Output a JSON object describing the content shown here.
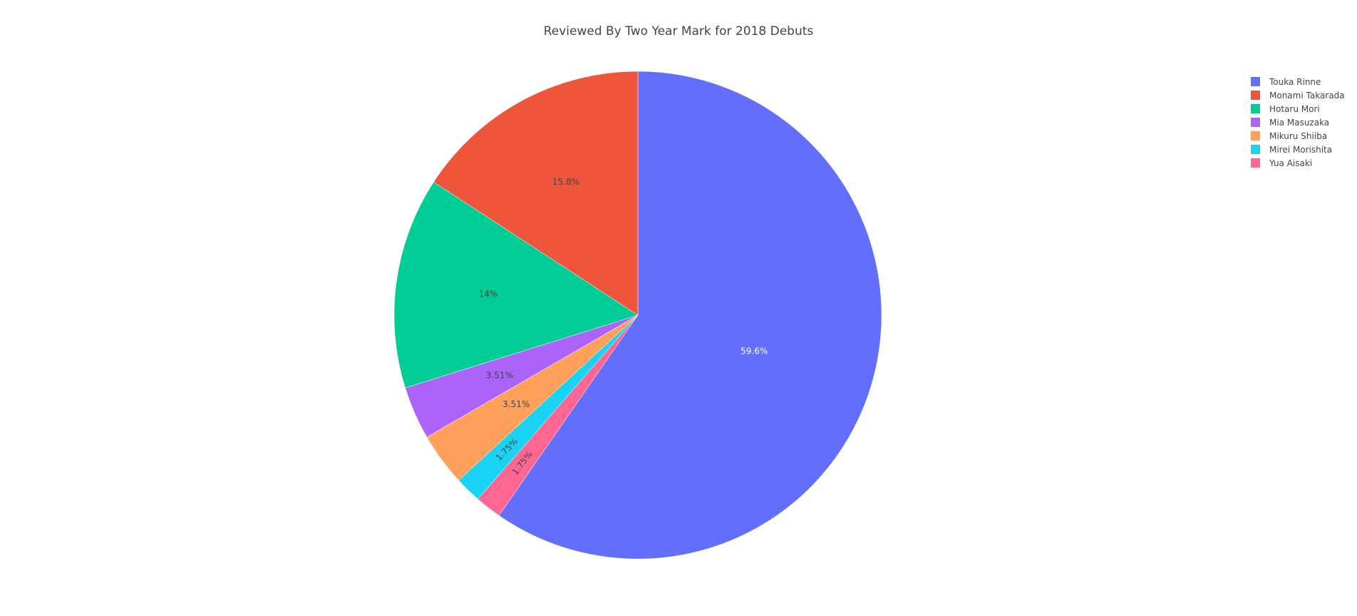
{
  "chart_data": {
    "type": "pie",
    "title": "Reviewed By Two Year Mark for 2018 Debuts",
    "slices": [
      {
        "label": "Touka Rinne",
        "percent": 59.6,
        "text": "59.6%",
        "color": "#636efa",
        "text_color": "#ffffff"
      },
      {
        "label": "Yua Aisaki",
        "percent": 1.75,
        "text": "1.75%",
        "color": "#ff6692",
        "text_color": "#444444"
      },
      {
        "label": "Mirei Morishita",
        "percent": 1.75,
        "text": "1.75%",
        "color": "#19d3f3",
        "text_color": "#444444"
      },
      {
        "label": "Mikuru Shiiba",
        "percent": 3.51,
        "text": "3.51%",
        "color": "#ffa15a",
        "text_color": "#444444"
      },
      {
        "label": "Mia Masuzaka",
        "percent": 3.51,
        "text": "3.51%",
        "color": "#ab63fa",
        "text_color": "#444444"
      },
      {
        "label": "Hotaru Mori",
        "percent": 14,
        "text": "14%",
        "color": "#00cc96",
        "text_color": "#444444"
      },
      {
        "label": "Monami Takarada",
        "percent": 15.8,
        "text": "15.8%",
        "color": "#ef553b",
        "text_color": "#444444"
      }
    ],
    "legend": [
      {
        "label": "Touka Rinne",
        "color": "#636efa"
      },
      {
        "label": "Monami Takarada",
        "color": "#ef553b"
      },
      {
        "label": "Hotaru Mori",
        "color": "#00cc96"
      },
      {
        "label": "Mia Masuzaka",
        "color": "#ab63fa"
      },
      {
        "label": "Mikuru Shiiba",
        "color": "#ffa15a"
      },
      {
        "label": "Mirei Morishita",
        "color": "#19d3f3"
      },
      {
        "label": "Yua Aisaki",
        "color": "#ff6692"
      }
    ],
    "legend_position": "top-right"
  }
}
